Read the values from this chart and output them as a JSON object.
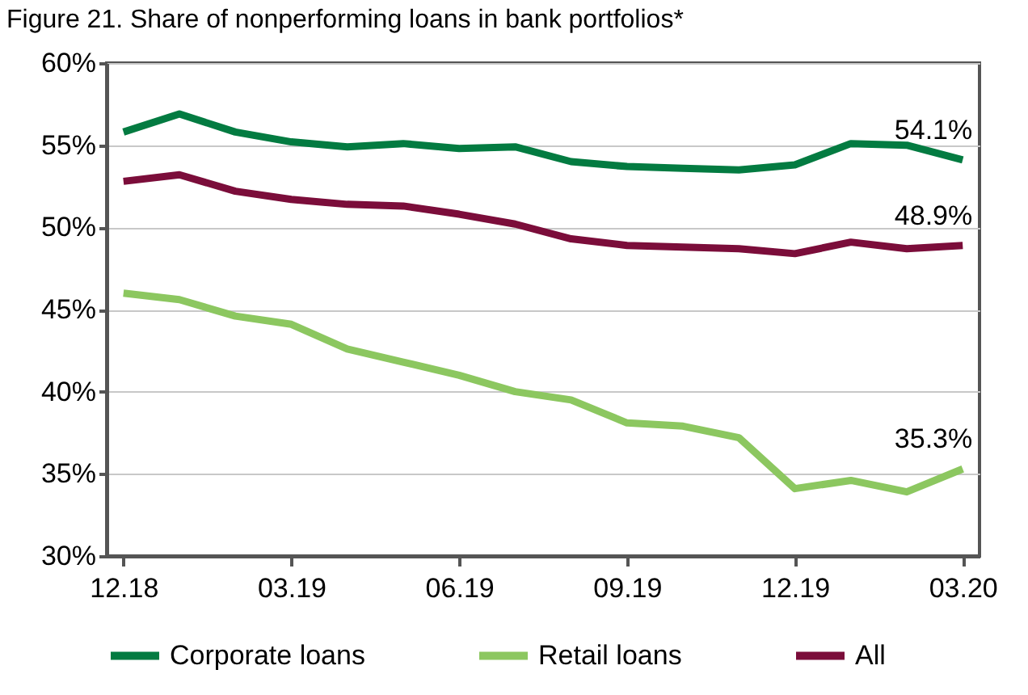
{
  "chart_data": {
    "type": "line",
    "title": "Figure 21. Share of nonperforming loans in bank portfolios*",
    "categories": [
      "12.18",
      null,
      null,
      "03.19",
      null,
      null,
      "06.19",
      null,
      null,
      "09.19",
      null,
      null,
      "12.19",
      null,
      null,
      "03.20"
    ],
    "series": [
      {
        "name": "Corporate loans",
        "color": "#037b41",
        "values": [
          55.8,
          56.9,
          55.8,
          55.2,
          54.9,
          55.1,
          54.8,
          54.9,
          54.0,
          53.7,
          53.6,
          53.5,
          53.8,
          55.1,
          55.0,
          54.1
        ],
        "value_labels": [
          null,
          null,
          null,
          null,
          null,
          null,
          null,
          null,
          null,
          null,
          null,
          null,
          null,
          null,
          null,
          "54.1%"
        ]
      },
      {
        "name": "Retail loans",
        "color": "#8cc760",
        "values": [
          46.0,
          45.6,
          44.6,
          44.1,
          42.6,
          41.8,
          41.0,
          40.0,
          39.5,
          38.1,
          37.9,
          37.2,
          34.1,
          34.6,
          33.9,
          35.3
        ],
        "value_labels": [
          null,
          null,
          null,
          null,
          null,
          null,
          null,
          null,
          null,
          null,
          null,
          null,
          null,
          null,
          null,
          "35.3%"
        ]
      },
      {
        "name": "All",
        "color": "#7b0d3a",
        "values": [
          52.8,
          53.2,
          52.2,
          51.7,
          51.4,
          51.3,
          50.8,
          50.2,
          49.3,
          48.9,
          48.8,
          48.7,
          48.4,
          49.1,
          48.7,
          48.9
        ],
        "value_labels": [
          null,
          null,
          null,
          null,
          null,
          null,
          null,
          null,
          null,
          null,
          null,
          null,
          null,
          null,
          null,
          "48.9%"
        ]
      }
    ],
    "ylim": [
      30,
      60
    ],
    "yticks": [
      {
        "value": 30,
        "label": "30%"
      },
      {
        "value": 35,
        "label": "35%"
      },
      {
        "value": 40,
        "label": "40%"
      },
      {
        "value": 45,
        "label": "45%"
      },
      {
        "value": 50,
        "label": "50%"
      },
      {
        "value": 55,
        "label": "55%"
      },
      {
        "value": 60,
        "label": "60%"
      }
    ],
    "grid": "y",
    "legend": "bottom",
    "marker": "none",
    "line_style": "solid"
  }
}
